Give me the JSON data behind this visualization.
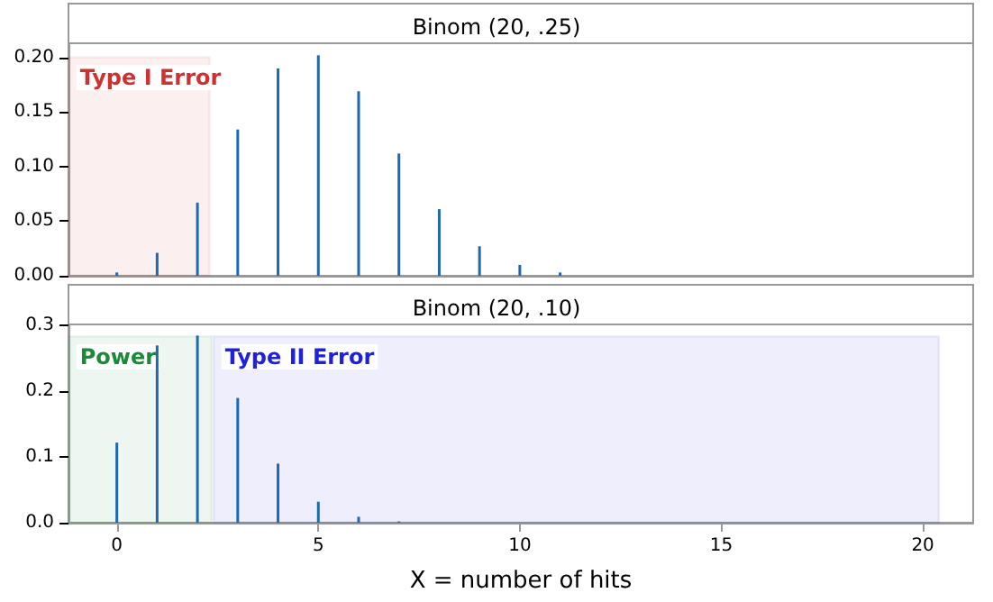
{
  "chart_data": [
    {
      "type": "bar",
      "title": "Binom (20, .25)",
      "x": [
        0,
        1,
        2,
        3,
        4,
        5,
        6,
        7,
        8,
        9,
        10,
        11,
        12,
        13,
        14,
        15,
        16,
        17,
        18,
        19,
        20
      ],
      "series": [
        {
          "color": "#1f68b0",
          "values": [
            0.003,
            0.021,
            0.067,
            0.134,
            0.19,
            0.202,
            0.169,
            0.112,
            0.061,
            0.027,
            0.01,
            0.003,
            0,
            0,
            0,
            0,
            0,
            0,
            0,
            0,
            0
          ]
        }
      ],
      "xlim": [
        -1.2,
        21.25
      ],
      "xticks": [
        0,
        5,
        10,
        15,
        20
      ],
      "ylim": [
        0,
        0.213
      ],
      "yticks": [
        {
          "value": 0,
          "label": "0.00"
        },
        0.05,
        {
          "value": 0.1,
          "label": "0.10"
        },
        0.15,
        {
          "value": 0.2,
          "label": "0.20"
        }
      ],
      "tick_labels": "y",
      "grid": false,
      "bands": [
        {
          "axis": "x",
          "from": -1.2,
          "to": 2.3,
          "label": "Type I Error",
          "color": "#d03030"
        }
      ]
    },
    {
      "type": "bar",
      "title": "Binom (20, .10)",
      "xlabel": "X = number of hits",
      "x": [
        0,
        1,
        2,
        3,
        4,
        5,
        6,
        7,
        8,
        9,
        10,
        11,
        12,
        13,
        14,
        15,
        16,
        17,
        18,
        19,
        20
      ],
      "series": [
        {
          "color": "#1f68b0",
          "values": [
            0.122,
            0.27,
            0.285,
            0.19,
            0.09,
            0.032,
            0.009,
            0.002,
            0,
            0,
            0,
            0,
            0,
            0,
            0,
            0,
            0,
            0,
            0,
            0,
            0
          ]
        }
      ],
      "xlim": [
        -1.2,
        21.25
      ],
      "xticks": [
        0,
        5,
        10,
        15,
        20
      ],
      "ylim": [
        0,
        0.302
      ],
      "yticks": [
        {
          "value": 0,
          "label": "0.0"
        },
        0.1,
        0.2,
        0.3
      ],
      "grid": false,
      "bands": [
        {
          "axis": "x",
          "from": -1.2,
          "to": 2.35,
          "label": "Power",
          "color": "#1a8a3a"
        },
        {
          "axis": "x",
          "from": 2.4,
          "to": 20.4,
          "label": "Type II Error",
          "color": "#2020e0"
        }
      ]
    }
  ]
}
